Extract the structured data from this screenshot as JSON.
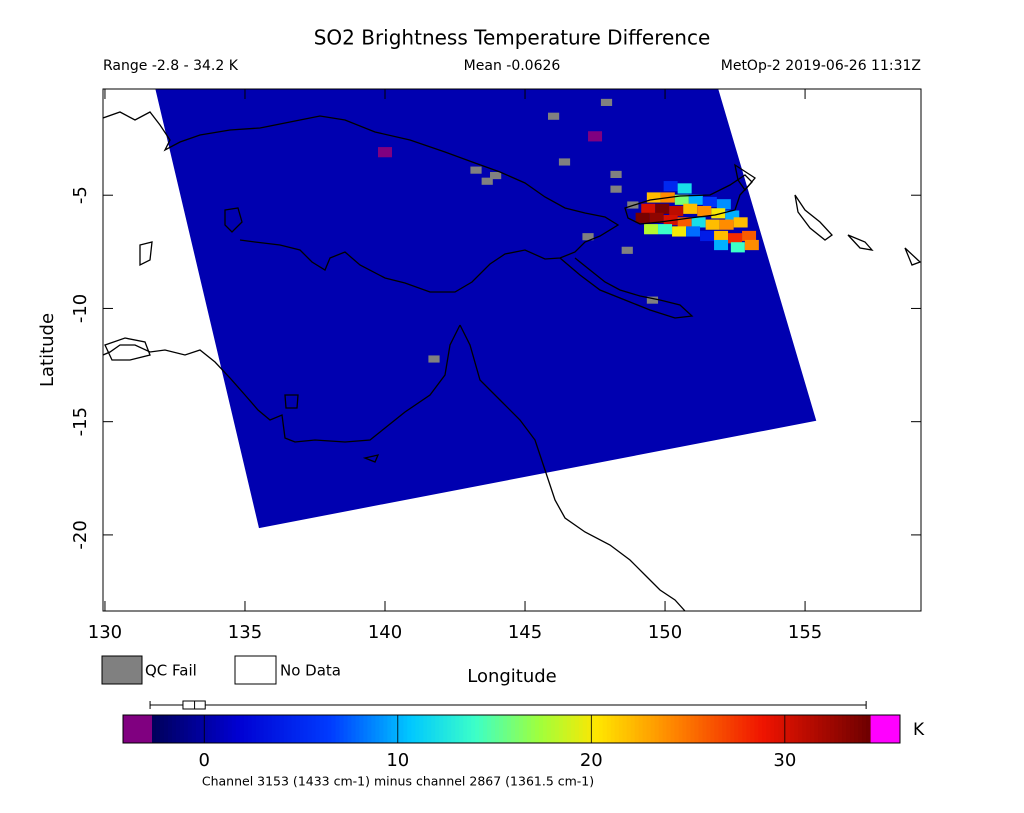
{
  "chart_data": {
    "type": "map",
    "title": "SO2 Brightness Temperature Difference",
    "range_text": "Range -2.8 - 34.2 K",
    "mean_text": "Mean -0.0626",
    "source_text": "MetOp-2 2019-06-26 11:31Z",
    "xlabel": "Longitude",
    "ylabel": "Latitude",
    "xlim": [
      129.93,
      159.14
    ],
    "ylim": [
      -23.36,
      -0.31
    ],
    "xticks": [
      130,
      135,
      140,
      145,
      150,
      155
    ],
    "yticks": [
      -5,
      -10,
      -15,
      -20
    ],
    "swath": {
      "lon": [
        131.8,
        151.9,
        155.4,
        135.5
      ],
      "lat": [
        -0.31,
        -0.31,
        -14.96,
        -19.7
      ],
      "value": 0.5
    },
    "cells": {
      "lon": [
        150.2,
        150.7,
        149.6,
        150.1,
        150.6,
        151.1,
        151.6,
        152.1,
        149.4,
        149.9,
        150.4,
        150.9,
        151.4,
        151.9,
        152.4,
        149.2,
        149.7,
        150.2,
        150.7,
        151.2,
        151.7,
        152.2,
        152.7,
        149.5,
        150.0,
        150.5,
        151.0,
        151.5,
        152.0,
        152.5,
        153.0,
        152.0,
        152.6,
        153.1,
        140.0,
        147.5
      ],
      "lat": [
        -4.6,
        -4.7,
        -5.1,
        -5.1,
        -5.2,
        -5.2,
        -5.3,
        -5.4,
        -5.6,
        -5.6,
        -5.7,
        -5.6,
        -5.7,
        -5.8,
        -5.9,
        -6.0,
        -6.0,
        -6.1,
        -6.2,
        -6.2,
        -6.3,
        -6.3,
        -6.2,
        -6.5,
        -6.5,
        -6.6,
        -6.6,
        -6.8,
        -6.8,
        -6.9,
        -6.8,
        -7.2,
        -7.3,
        -7.2,
        -3.1,
        -2.4
      ],
      "values": [
        5,
        12,
        22,
        24,
        16,
        10,
        6,
        9,
        30,
        34,
        31,
        22,
        24,
        20,
        10,
        34,
        33,
        30,
        26,
        12,
        22,
        24,
        22,
        18,
        14,
        20,
        8,
        4,
        22,
        28,
        26,
        10,
        14,
        24,
        -2.8,
        -2.8
      ]
    },
    "qc_fail": {
      "lon": [
        146.07,
        147.96,
        146.46,
        143.3,
        143.7,
        144.0,
        148.3,
        148.3,
        147.3,
        148.7,
        149.6,
        141.8,
        148.9
      ],
      "lat": [
        -1.58,
        -0.97,
        -3.6,
        -3.96,
        -4.45,
        -4.2,
        -4.15,
        -4.8,
        -6.9,
        -7.5,
        -9.7,
        -12.3,
        -5.5
      ]
    },
    "legend": [
      "QC Fail",
      "No Data"
    ],
    "colorbar": {
      "clim": [
        -2.7,
        34.4
      ],
      "ticks": [
        0,
        10,
        20,
        30
      ],
      "unit": "K",
      "caption": "Channel 3153 (1433 cm-1) minus channel 2867 (1361.5 cm-1)",
      "box": {
        "min": -2.8,
        "q1": -1.1,
        "median": -0.5,
        "q3": 0.05,
        "max": 34.2
      }
    }
  }
}
